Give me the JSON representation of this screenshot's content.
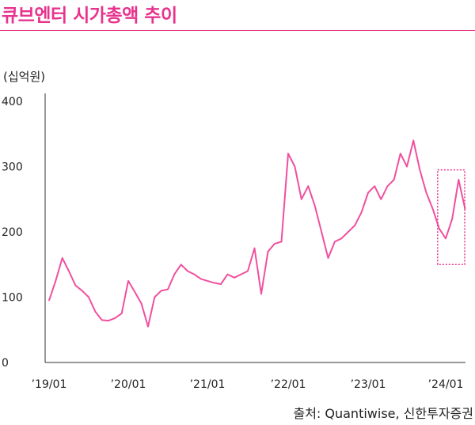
{
  "title": "큐브엔터 시가총액 추이",
  "unit_label": "(십억원)",
  "source": "출처: Quantiwise, 신한투자증권",
  "colors": {
    "accent": "#e8338e",
    "line": "#f0509e",
    "axis": "#333333"
  },
  "chart_data": {
    "type": "line",
    "title": "큐브엔터 시가총액 추이",
    "ylabel": "(십억원)",
    "ylim": [
      0,
      400
    ],
    "yticks": [
      "0",
      "100",
      "200",
      "300",
      "400"
    ],
    "xticks": [
      "’19/01",
      "’20/01",
      "’21/01",
      "’22/01",
      "’23/01",
      "’24/01"
    ],
    "x_range": [
      "2019-01",
      "2024-04"
    ],
    "highlight_box": {
      "x_start": "2023-12",
      "x_end": "2024-04",
      "y_range": [
        150,
        295
      ],
      "style": "dotted"
    },
    "series": [
      {
        "x": [
          "2019-01",
          "2019-02",
          "2019-03",
          "2019-04",
          "2019-05",
          "2019-06",
          "2019-07",
          "2019-08",
          "2019-09",
          "2019-10",
          "2019-11",
          "2019-12",
          "2020-01",
          "2020-02",
          "2020-03",
          "2020-04",
          "2020-05",
          "2020-06",
          "2020-07",
          "2020-08",
          "2020-09",
          "2020-10",
          "2020-11",
          "2020-12",
          "2021-01",
          "2021-02",
          "2021-03",
          "2021-04",
          "2021-05",
          "2021-06",
          "2021-07",
          "2021-08",
          "2021-09",
          "2021-10",
          "2021-11",
          "2021-12",
          "2022-01",
          "2022-02",
          "2022-03",
          "2022-04",
          "2022-05",
          "2022-06",
          "2022-07",
          "2022-08",
          "2022-09",
          "2022-10",
          "2022-11",
          "2022-12",
          "2023-01",
          "2023-02",
          "2023-03",
          "2023-04",
          "2023-05",
          "2023-06",
          "2023-07",
          "2023-08",
          "2023-09",
          "2023-10",
          "2023-11",
          "2023-12",
          "2024-01",
          "2024-02",
          "2024-03",
          "2024-04"
        ],
        "values": [
          95,
          125,
          160,
          140,
          118,
          110,
          100,
          78,
          65,
          64,
          68,
          75,
          125,
          108,
          90,
          55,
          100,
          110,
          112,
          135,
          150,
          140,
          135,
          128,
          125,
          122,
          120,
          135,
          130,
          135,
          140,
          175,
          105,
          170,
          182,
          185,
          320,
          300,
          250,
          270,
          240,
          200,
          160,
          185,
          190,
          200,
          210,
          230,
          260,
          270,
          250,
          270,
          280,
          320,
          300,
          340,
          295,
          260,
          235,
          205,
          190,
          220,
          280,
          235
        ]
      }
    ]
  }
}
